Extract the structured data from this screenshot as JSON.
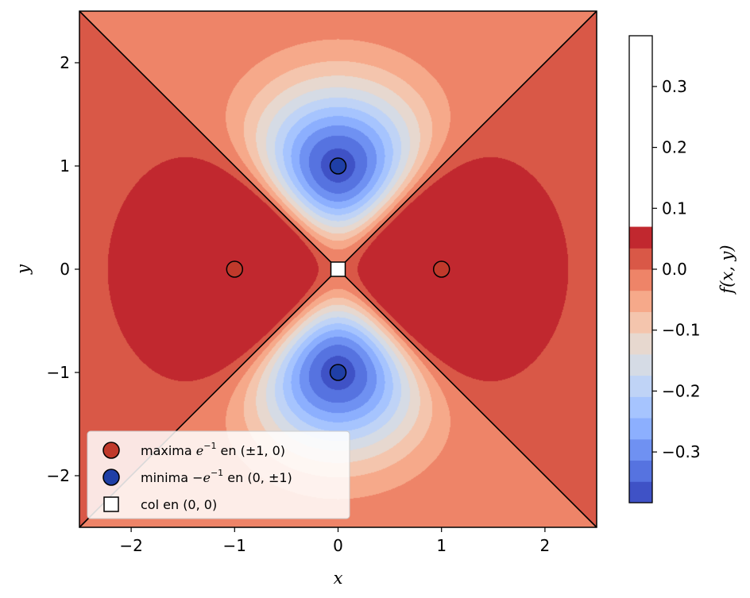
{
  "chart_data": {
    "type": "contour",
    "function": "f(x, y) = (x^2 - y^2) * exp(-(x^2 + y^2))",
    "xlabel": "x",
    "ylabel": "y",
    "xlim": [
      -2.5,
      2.5
    ],
    "ylim": [
      -2.5,
      2.5
    ],
    "x_ticks": [
      -2,
      -1,
      0,
      1,
      2
    ],
    "y_ticks": [
      -2,
      -1,
      0,
      1,
      2
    ],
    "x_tick_labels": [
      "−2",
      "−1",
      "0",
      "1",
      "2"
    ],
    "y_tick_labels": [
      "−2",
      "−1",
      "0",
      "1",
      "2"
    ],
    "contour_levels": [
      -0.3833,
      -0.3484,
      -0.3136,
      -0.2788,
      -0.2439,
      -0.2091,
      -0.1742,
      -0.1394,
      -0.1045,
      -0.0697,
      -0.0348,
      0.0,
      0.0348,
      0.0697,
      0.1045,
      0.1394,
      0.1742,
      0.2091,
      0.2439,
      0.2788,
      0.3136,
      0.3484,
      0.3833
    ],
    "colormap": "coolwarm",
    "zero_lines": [
      "y = x",
      "y = -x"
    ],
    "colorbar": {
      "label": "f(x, y)",
      "range": [
        -0.3833,
        0.3833
      ],
      "ticks": [
        -0.3,
        -0.2,
        -0.1,
        0.0,
        0.1,
        0.2,
        0.3
      ],
      "tick_labels": [
        "−0.3",
        "−0.2",
        "−0.1",
        "0.0",
        "0.1",
        "0.2",
        "0.3"
      ],
      "level_colors": [
        "#3f52c6",
        "#5673e0",
        "#6f91f2",
        "#8caffe",
        "#a6c4fe",
        "#bfd3f6",
        "#d5dbe5",
        "#e7d8cf",
        "#f4c5ad",
        "#f6a98a",
        "#ee8468",
        "#d95847",
        "#c1282f"
      ]
    },
    "points": [
      {
        "group": "maxima",
        "x": -1,
        "y": 0,
        "color": "#c0392b"
      },
      {
        "group": "maxima",
        "x": 1,
        "y": 0,
        "color": "#c0392b"
      },
      {
        "group": "minima",
        "x": 0,
        "y": 1,
        "color": "#1f3fa6"
      },
      {
        "group": "minima",
        "x": 0,
        "y": -1,
        "color": "#1f3fa6"
      },
      {
        "group": "col",
        "x": 0,
        "y": 0,
        "color": "#ffffff"
      }
    ],
    "legend": {
      "placement": "lower-left",
      "entries": [
        {
          "marker": "circle",
          "color": "#c0392b",
          "text_pre": "maxima ",
          "math_base": "e",
          "math_sup": "−1",
          "text_post": " en (±1, 0)"
        },
        {
          "marker": "circle",
          "color": "#1f3fa6",
          "text_pre": "minima −",
          "math_base": "e",
          "math_sup": "−1",
          "text_post": " en (0, ±1)"
        },
        {
          "marker": "square",
          "color": "#ffffff",
          "text_pre": "col en (0, 0)",
          "math_base": "",
          "math_sup": "",
          "text_post": ""
        }
      ]
    }
  }
}
